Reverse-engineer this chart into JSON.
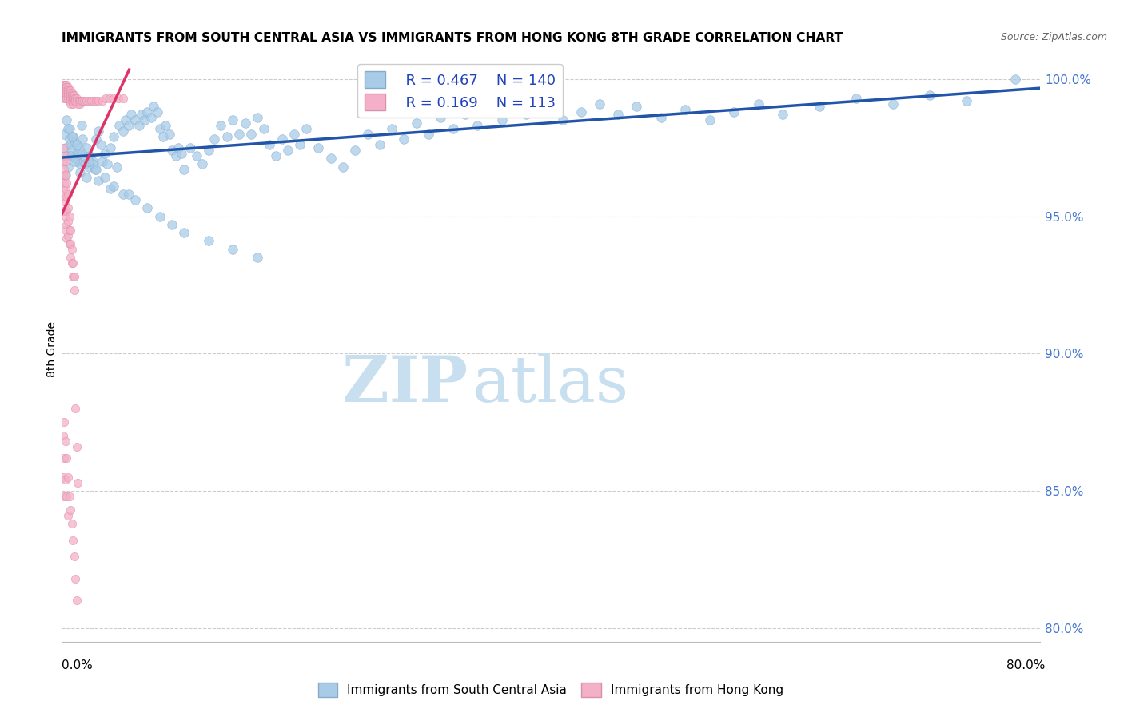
{
  "title": "IMMIGRANTS FROM SOUTH CENTRAL ASIA VS IMMIGRANTS FROM HONG KONG 8TH GRADE CORRELATION CHART",
  "source": "Source: ZipAtlas.com",
  "ylabel": "8th Grade",
  "ylabel_right_labels": [
    "100.0%",
    "95.0%",
    "90.0%",
    "85.0%",
    "80.0%"
  ],
  "ylabel_right_values": [
    1.0,
    0.95,
    0.9,
    0.85,
    0.8
  ],
  "xmin": 0.0,
  "xmax": 0.8,
  "ymin": 0.795,
  "ymax": 1.008,
  "legend_blue_R": "R = 0.467",
  "legend_blue_N": "N = 140",
  "legend_pink_R": "R = 0.169",
  "legend_pink_N": "N = 113",
  "blue_color": "#a8cce8",
  "pink_color": "#f4b0c8",
  "blue_line_color": "#2255aa",
  "pink_line_color": "#dd3366",
  "legend_label_blue": "Immigrants from South Central Asia",
  "legend_label_pink": "Immigrants from Hong Kong",
  "watermark_zip": "ZIP",
  "watermark_atlas": "atlas",
  "watermark_color": "#c8dff0",
  "grid_color": "#cccccc",
  "blue_scatter_x": [
    0.002,
    0.003,
    0.004,
    0.005,
    0.006,
    0.007,
    0.008,
    0.009,
    0.01,
    0.011,
    0.012,
    0.013,
    0.014,
    0.015,
    0.016,
    0.017,
    0.018,
    0.019,
    0.02,
    0.022,
    0.023,
    0.025,
    0.027,
    0.028,
    0.03,
    0.032,
    0.033,
    0.035,
    0.037,
    0.04,
    0.042,
    0.045,
    0.047,
    0.05,
    0.052,
    0.055,
    0.057,
    0.06,
    0.063,
    0.065,
    0.068,
    0.07,
    0.073,
    0.075,
    0.078,
    0.08,
    0.083,
    0.085,
    0.088,
    0.09,
    0.093,
    0.095,
    0.098,
    0.1,
    0.105,
    0.11,
    0.115,
    0.12,
    0.125,
    0.13,
    0.135,
    0.14,
    0.145,
    0.15,
    0.155,
    0.16,
    0.165,
    0.17,
    0.175,
    0.18,
    0.185,
    0.19,
    0.195,
    0.2,
    0.21,
    0.22,
    0.23,
    0.24,
    0.25,
    0.26,
    0.27,
    0.28,
    0.29,
    0.3,
    0.31,
    0.32,
    0.33,
    0.34,
    0.35,
    0.36,
    0.37,
    0.38,
    0.395,
    0.41,
    0.425,
    0.44,
    0.455,
    0.47,
    0.49,
    0.51,
    0.53,
    0.55,
    0.57,
    0.59,
    0.62,
    0.65,
    0.68,
    0.71,
    0.74,
    0.003,
    0.005,
    0.007,
    0.01,
    0.015,
    0.02,
    0.025,
    0.03,
    0.04,
    0.05,
    0.06,
    0.07,
    0.08,
    0.09,
    0.1,
    0.12,
    0.14,
    0.16,
    0.78,
    0.004,
    0.006,
    0.008,
    0.012,
    0.016,
    0.022,
    0.028,
    0.035,
    0.042,
    0.055
  ],
  "blue_scatter_y": [
    0.98,
    0.975,
    0.972,
    0.982,
    0.978,
    0.976,
    0.974,
    0.979,
    0.971,
    0.977,
    0.973,
    0.97,
    0.975,
    0.969,
    0.983,
    0.978,
    0.972,
    0.969,
    0.975,
    0.968,
    0.972,
    0.97,
    0.967,
    0.978,
    0.981,
    0.976,
    0.97,
    0.973,
    0.969,
    0.975,
    0.979,
    0.968,
    0.983,
    0.981,
    0.985,
    0.983,
    0.987,
    0.985,
    0.983,
    0.987,
    0.985,
    0.988,
    0.986,
    0.99,
    0.988,
    0.982,
    0.979,
    0.983,
    0.98,
    0.974,
    0.972,
    0.975,
    0.973,
    0.967,
    0.975,
    0.972,
    0.969,
    0.974,
    0.978,
    0.983,
    0.979,
    0.985,
    0.98,
    0.984,
    0.98,
    0.986,
    0.982,
    0.976,
    0.972,
    0.978,
    0.974,
    0.98,
    0.976,
    0.982,
    0.975,
    0.971,
    0.968,
    0.974,
    0.98,
    0.976,
    0.982,
    0.978,
    0.984,
    0.98,
    0.986,
    0.982,
    0.987,
    0.983,
    0.989,
    0.985,
    0.991,
    0.987,
    0.99,
    0.985,
    0.988,
    0.991,
    0.987,
    0.99,
    0.986,
    0.989,
    0.985,
    0.988,
    0.991,
    0.987,
    0.99,
    0.993,
    0.991,
    0.994,
    0.992,
    0.965,
    0.968,
    0.972,
    0.97,
    0.966,
    0.964,
    0.969,
    0.963,
    0.96,
    0.958,
    0.956,
    0.953,
    0.95,
    0.947,
    0.944,
    0.941,
    0.938,
    0.935,
    1.0,
    0.985,
    0.982,
    0.979,
    0.976,
    0.973,
    0.97,
    0.967,
    0.964,
    0.961,
    0.958
  ],
  "pink_scatter_x": [
    0.001,
    0.001,
    0.001,
    0.001,
    0.001,
    0.002,
    0.002,
    0.002,
    0.002,
    0.002,
    0.002,
    0.003,
    0.003,
    0.003,
    0.003,
    0.003,
    0.003,
    0.004,
    0.004,
    0.004,
    0.004,
    0.004,
    0.004,
    0.005,
    0.005,
    0.005,
    0.005,
    0.005,
    0.006,
    0.006,
    0.006,
    0.006,
    0.006,
    0.007,
    0.007,
    0.007,
    0.007,
    0.007,
    0.007,
    0.008,
    0.008,
    0.008,
    0.008,
    0.009,
    0.009,
    0.009,
    0.009,
    0.01,
    0.01,
    0.01,
    0.011,
    0.011,
    0.012,
    0.012,
    0.013,
    0.013,
    0.014,
    0.015,
    0.015,
    0.016,
    0.017,
    0.018,
    0.02,
    0.022,
    0.024,
    0.026,
    0.028,
    0.03,
    0.033,
    0.036,
    0.039,
    0.042,
    0.046,
    0.05,
    0.001,
    0.001,
    0.001,
    0.001,
    0.002,
    0.002,
    0.002,
    0.002,
    0.002,
    0.003,
    0.003,
    0.003,
    0.003,
    0.003,
    0.003,
    0.004,
    0.004,
    0.004,
    0.004,
    0.004,
    0.005,
    0.005,
    0.005,
    0.005,
    0.006,
    0.006,
    0.006,
    0.007,
    0.007,
    0.007,
    0.008,
    0.008,
    0.009,
    0.009,
    0.01,
    0.01,
    0.011,
    0.012,
    0.013
  ],
  "pink_scatter_y": [
    0.998,
    0.997,
    0.996,
    0.995,
    0.994,
    0.998,
    0.997,
    0.996,
    0.995,
    0.994,
    0.993,
    0.998,
    0.997,
    0.996,
    0.995,
    0.994,
    0.993,
    0.998,
    0.997,
    0.996,
    0.995,
    0.994,
    0.993,
    0.997,
    0.996,
    0.995,
    0.994,
    0.993,
    0.996,
    0.995,
    0.994,
    0.993,
    0.992,
    0.996,
    0.995,
    0.994,
    0.993,
    0.992,
    0.991,
    0.995,
    0.994,
    0.993,
    0.992,
    0.994,
    0.993,
    0.992,
    0.991,
    0.994,
    0.993,
    0.992,
    0.993,
    0.992,
    0.993,
    0.992,
    0.992,
    0.991,
    0.992,
    0.992,
    0.991,
    0.992,
    0.992,
    0.992,
    0.992,
    0.992,
    0.992,
    0.992,
    0.992,
    0.992,
    0.992,
    0.993,
    0.993,
    0.993,
    0.993,
    0.993,
    0.975,
    0.97,
    0.965,
    0.96,
    0.972,
    0.967,
    0.962,
    0.957,
    0.952,
    0.97,
    0.965,
    0.96,
    0.955,
    0.95,
    0.945,
    0.962,
    0.957,
    0.952,
    0.947,
    0.942,
    0.958,
    0.953,
    0.948,
    0.943,
    0.95,
    0.945,
    0.94,
    0.945,
    0.94,
    0.935,
    0.938,
    0.933,
    0.933,
    0.928,
    0.928,
    0.923,
    0.88,
    0.866,
    0.853
  ],
  "pink_low_x": [
    0.001,
    0.001,
    0.002,
    0.002,
    0.002,
    0.003,
    0.003,
    0.004,
    0.004,
    0.005,
    0.005,
    0.006,
    0.007,
    0.008,
    0.009,
    0.01,
    0.011,
    0.012
  ],
  "pink_low_y": [
    0.87,
    0.855,
    0.875,
    0.862,
    0.848,
    0.868,
    0.854,
    0.862,
    0.848,
    0.855,
    0.841,
    0.848,
    0.843,
    0.838,
    0.832,
    0.826,
    0.818,
    0.81
  ]
}
